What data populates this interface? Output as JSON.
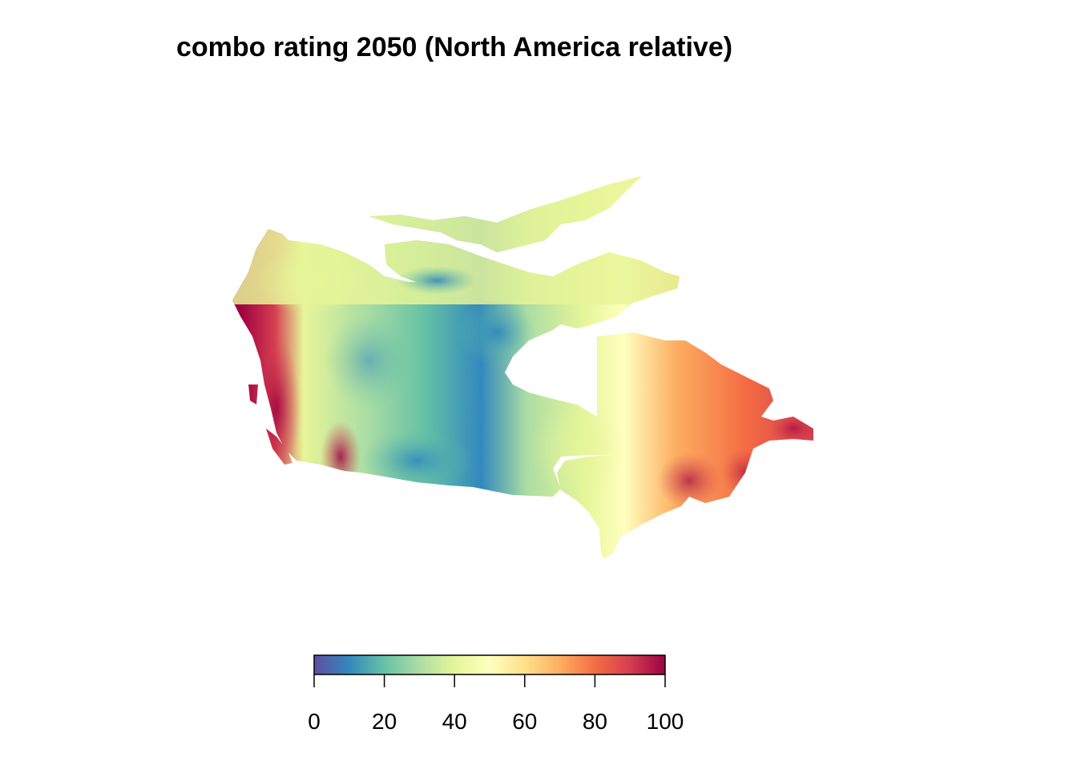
{
  "map": {
    "title": "combo rating 2050 (North America relative)"
  },
  "legend": {
    "min": 0,
    "max": 100,
    "ticks": [
      "0",
      "20",
      "40",
      "60",
      "80",
      "100"
    ],
    "palette": [
      "#5e4fa2",
      "#3288bd",
      "#66c2a5",
      "#abdda4",
      "#e6f598",
      "#ffffbf",
      "#fee08b",
      "#fdae61",
      "#f46d43",
      "#d53e4f",
      "#9e0142"
    ]
  }
}
